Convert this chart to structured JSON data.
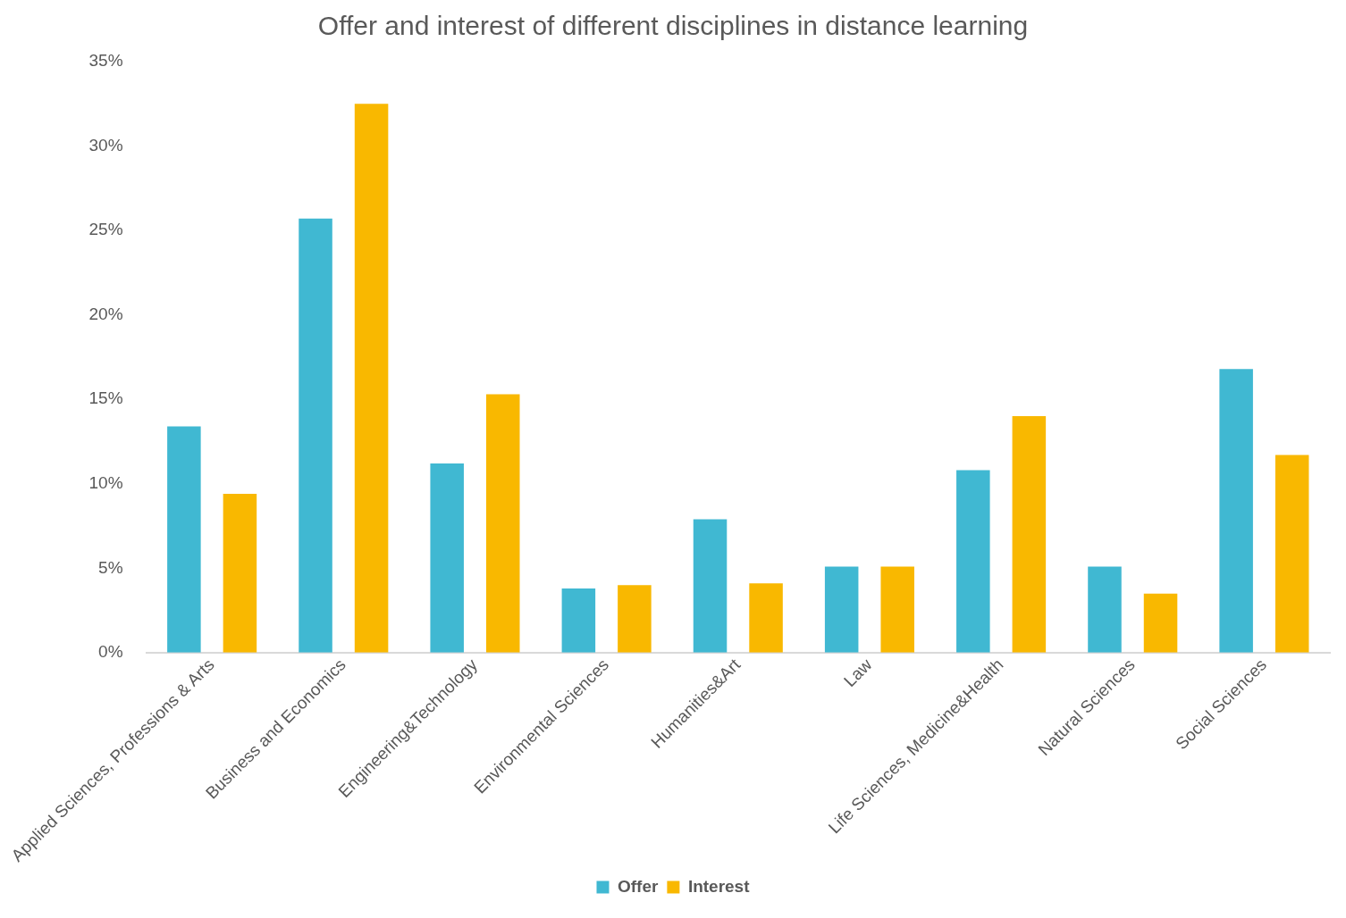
{
  "chart_data": {
    "type": "bar",
    "title": "Offer and interest of different disciplines in distance learning",
    "categories": [
      "Applied Sciences, Professions & Arts",
      "Business and Economics",
      "Engineering&Technology",
      "Environmental Sciences",
      "Humanities&Art",
      "Law",
      "Life Sciences, Medicine&Health",
      "Natural Sciences",
      "Social Sciences"
    ],
    "series": [
      {
        "name": "Offer",
        "color": "#40b8d2",
        "values": [
          13.4,
          25.7,
          11.2,
          3.8,
          7.9,
          5.1,
          10.8,
          5.1,
          16.8
        ]
      },
      {
        "name": "Interest",
        "color": "#f9b800",
        "values": [
          9.4,
          32.5,
          15.3,
          4.0,
          4.1,
          5.1,
          14.0,
          3.5,
          11.7
        ]
      }
    ],
    "ylim": [
      0,
      35
    ],
    "yticks": [
      {
        "value": 0,
        "label": "0%"
      },
      {
        "value": 5,
        "label": "5%"
      },
      {
        "value": 10,
        "label": "10%"
      },
      {
        "value": 15,
        "label": "15%"
      },
      {
        "value": 20,
        "label": "20%"
      },
      {
        "value": 25,
        "label": "25%"
      },
      {
        "value": 30,
        "label": "30%"
      },
      {
        "value": 35,
        "label": "35%"
      }
    ],
    "grid": false,
    "legend": "bottom"
  }
}
